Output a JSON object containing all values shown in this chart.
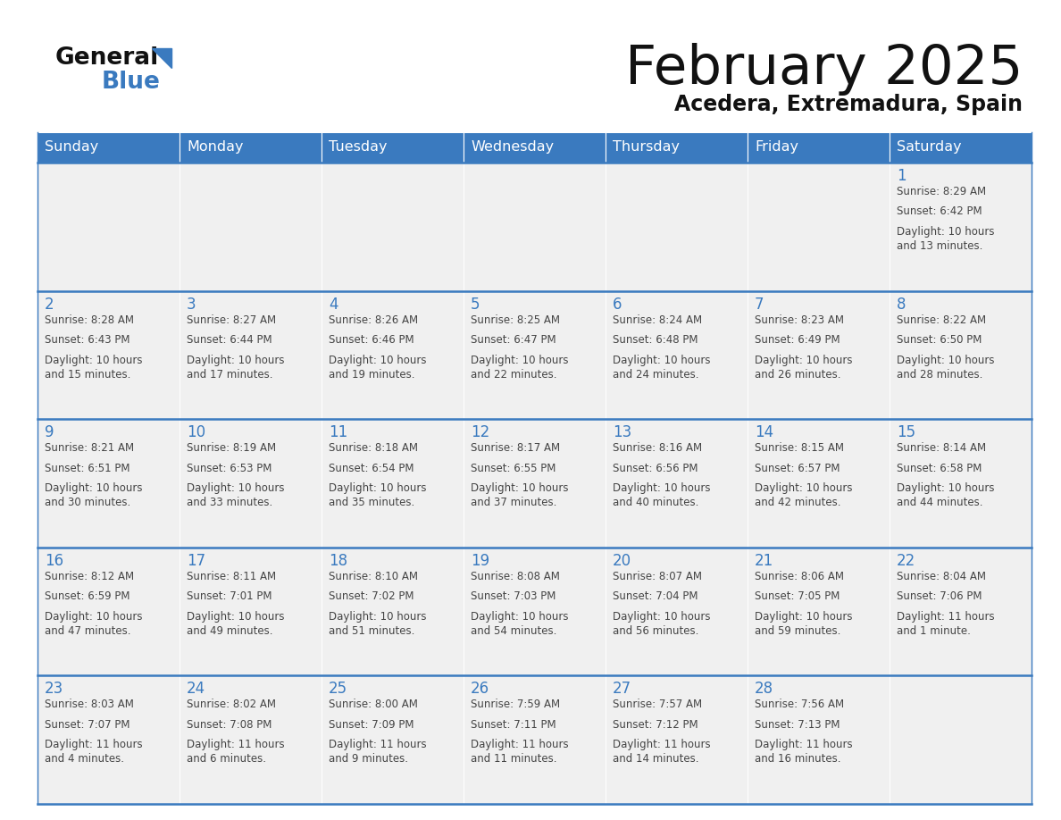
{
  "title": "February 2025",
  "subtitle": "Acedera, Extremadura, Spain",
  "header_color": "#3a7abf",
  "header_text_color": "#ffffff",
  "days_of_week": [
    "Sunday",
    "Monday",
    "Tuesday",
    "Wednesday",
    "Thursday",
    "Friday",
    "Saturday"
  ],
  "background_color": "#ffffff",
  "cell_bg_color": "#f0f0f0",
  "line_color": "#3a7abf",
  "day_number_color": "#3a7abf",
  "text_color": "#444444",
  "calendar_data": [
    [
      null,
      null,
      null,
      null,
      null,
      null,
      {
        "day": 1,
        "sunrise": "8:29 AM",
        "sunset": "6:42 PM",
        "daylight": "10 hours\nand 13 minutes."
      }
    ],
    [
      {
        "day": 2,
        "sunrise": "8:28 AM",
        "sunset": "6:43 PM",
        "daylight": "10 hours\nand 15 minutes."
      },
      {
        "day": 3,
        "sunrise": "8:27 AM",
        "sunset": "6:44 PM",
        "daylight": "10 hours\nand 17 minutes."
      },
      {
        "day": 4,
        "sunrise": "8:26 AM",
        "sunset": "6:46 PM",
        "daylight": "10 hours\nand 19 minutes."
      },
      {
        "day": 5,
        "sunrise": "8:25 AM",
        "sunset": "6:47 PM",
        "daylight": "10 hours\nand 22 minutes."
      },
      {
        "day": 6,
        "sunrise": "8:24 AM",
        "sunset": "6:48 PM",
        "daylight": "10 hours\nand 24 minutes."
      },
      {
        "day": 7,
        "sunrise": "8:23 AM",
        "sunset": "6:49 PM",
        "daylight": "10 hours\nand 26 minutes."
      },
      {
        "day": 8,
        "sunrise": "8:22 AM",
        "sunset": "6:50 PM",
        "daylight": "10 hours\nand 28 minutes."
      }
    ],
    [
      {
        "day": 9,
        "sunrise": "8:21 AM",
        "sunset": "6:51 PM",
        "daylight": "10 hours\nand 30 minutes."
      },
      {
        "day": 10,
        "sunrise": "8:19 AM",
        "sunset": "6:53 PM",
        "daylight": "10 hours\nand 33 minutes."
      },
      {
        "day": 11,
        "sunrise": "8:18 AM",
        "sunset": "6:54 PM",
        "daylight": "10 hours\nand 35 minutes."
      },
      {
        "day": 12,
        "sunrise": "8:17 AM",
        "sunset": "6:55 PM",
        "daylight": "10 hours\nand 37 minutes."
      },
      {
        "day": 13,
        "sunrise": "8:16 AM",
        "sunset": "6:56 PM",
        "daylight": "10 hours\nand 40 minutes."
      },
      {
        "day": 14,
        "sunrise": "8:15 AM",
        "sunset": "6:57 PM",
        "daylight": "10 hours\nand 42 minutes."
      },
      {
        "day": 15,
        "sunrise": "8:14 AM",
        "sunset": "6:58 PM",
        "daylight": "10 hours\nand 44 minutes."
      }
    ],
    [
      {
        "day": 16,
        "sunrise": "8:12 AM",
        "sunset": "6:59 PM",
        "daylight": "10 hours\nand 47 minutes."
      },
      {
        "day": 17,
        "sunrise": "8:11 AM",
        "sunset": "7:01 PM",
        "daylight": "10 hours\nand 49 minutes."
      },
      {
        "day": 18,
        "sunrise": "8:10 AM",
        "sunset": "7:02 PM",
        "daylight": "10 hours\nand 51 minutes."
      },
      {
        "day": 19,
        "sunrise": "8:08 AM",
        "sunset": "7:03 PM",
        "daylight": "10 hours\nand 54 minutes."
      },
      {
        "day": 20,
        "sunrise": "8:07 AM",
        "sunset": "7:04 PM",
        "daylight": "10 hours\nand 56 minutes."
      },
      {
        "day": 21,
        "sunrise": "8:06 AM",
        "sunset": "7:05 PM",
        "daylight": "10 hours\nand 59 minutes."
      },
      {
        "day": 22,
        "sunrise": "8:04 AM",
        "sunset": "7:06 PM",
        "daylight": "11 hours\nand 1 minute."
      }
    ],
    [
      {
        "day": 23,
        "sunrise": "8:03 AM",
        "sunset": "7:07 PM",
        "daylight": "11 hours\nand 4 minutes."
      },
      {
        "day": 24,
        "sunrise": "8:02 AM",
        "sunset": "7:08 PM",
        "daylight": "11 hours\nand 6 minutes."
      },
      {
        "day": 25,
        "sunrise": "8:00 AM",
        "sunset": "7:09 PM",
        "daylight": "11 hours\nand 9 minutes."
      },
      {
        "day": 26,
        "sunrise": "7:59 AM",
        "sunset": "7:11 PM",
        "daylight": "11 hours\nand 11 minutes."
      },
      {
        "day": 27,
        "sunrise": "7:57 AM",
        "sunset": "7:12 PM",
        "daylight": "11 hours\nand 14 minutes."
      },
      {
        "day": 28,
        "sunrise": "7:56 AM",
        "sunset": "7:13 PM",
        "daylight": "11 hours\nand 16 minutes."
      },
      null
    ]
  ],
  "logo_general_color": "#111111",
  "logo_blue_color": "#3a7abf",
  "logo_triangle_color": "#3a7abf"
}
